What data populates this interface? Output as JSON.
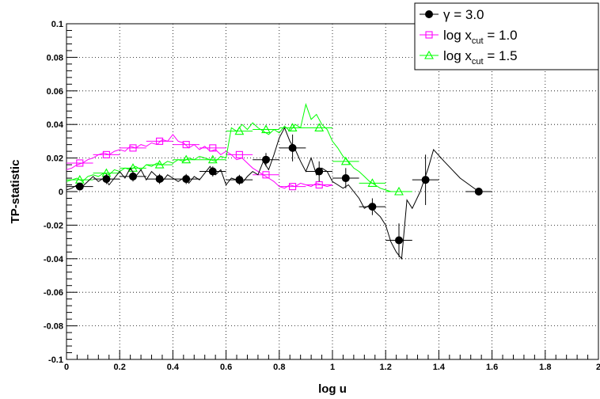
{
  "chart_data": {
    "type": "line",
    "xlabel": "log u",
    "ylabel": "TP-statistic",
    "xlim": [
      0,
      2
    ],
    "ylim": [
      -0.1,
      0.1
    ],
    "x_ticks": [
      {
        "value": 0,
        "label": "0"
      },
      {
        "value": 0.2,
        "label": "0.2"
      },
      {
        "value": 0.4,
        "label": "0.4"
      },
      {
        "value": 0.6,
        "label": "0.6"
      },
      {
        "value": 0.8,
        "label": "0.8"
      },
      {
        "value": 1.0,
        "label": "1"
      },
      {
        "value": 1.2,
        "label": "1.2"
      },
      {
        "value": 1.4,
        "label": "1.4"
      },
      {
        "value": 1.6,
        "label": "1.6"
      },
      {
        "value": 1.8,
        "label": "1.8"
      },
      {
        "value": 2.0,
        "label": "2"
      }
    ],
    "y_ticks": [
      {
        "value": -0.1,
        "label": "-0.1"
      },
      {
        "value": -0.08,
        "label": "-0.08"
      },
      {
        "value": -0.06,
        "label": "-0.06"
      },
      {
        "value": -0.04,
        "label": "-0.04"
      },
      {
        "value": -0.02,
        "label": "-0.02"
      },
      {
        "value": 0,
        "label": "0"
      },
      {
        "value": 0.02,
        "label": "0.02"
      },
      {
        "value": 0.04,
        "label": "0.04"
      },
      {
        "value": 0.06,
        "label": "0.06"
      },
      {
        "value": 0.08,
        "label": "0.08"
      },
      {
        "value": 0.1,
        "label": "0.1"
      }
    ],
    "grid": true,
    "legend_position": "top-right",
    "series": [
      {
        "legend_text": "γ = 3.0",
        "color": "#000000",
        "marker": "filled-circle",
        "curve": [
          [
            0.0,
            0.001
          ],
          [
            0.02,
            0.002
          ],
          [
            0.04,
            0.004
          ],
          [
            0.06,
            0.003
          ],
          [
            0.08,
            0.006
          ],
          [
            0.1,
            0.009
          ],
          [
            0.12,
            0.006
          ],
          [
            0.14,
            0.008
          ],
          [
            0.16,
            0.004
          ],
          [
            0.18,
            0.008
          ],
          [
            0.2,
            0.012
          ],
          [
            0.22,
            0.008
          ],
          [
            0.24,
            0.014
          ],
          [
            0.26,
            0.009
          ],
          [
            0.28,
            0.013
          ],
          [
            0.3,
            0.007
          ],
          [
            0.32,
            0.012
          ],
          [
            0.34,
            0.009
          ],
          [
            0.36,
            0.006
          ],
          [
            0.38,
            0.01
          ],
          [
            0.4,
            0.008
          ],
          [
            0.42,
            0.006
          ],
          [
            0.44,
            0.008
          ],
          [
            0.46,
            0.005
          ],
          [
            0.48,
            0.009
          ],
          [
            0.5,
            0.007
          ],
          [
            0.52,
            0.011
          ],
          [
            0.54,
            0.015
          ],
          [
            0.56,
            0.01
          ],
          [
            0.58,
            0.013
          ],
          [
            0.6,
            0.004
          ],
          [
            0.62,
            0.008
          ],
          [
            0.64,
            0.007
          ],
          [
            0.66,
            0.005
          ],
          [
            0.68,
            0.009
          ],
          [
            0.7,
            0.012
          ],
          [
            0.72,
            0.01
          ],
          [
            0.74,
            0.018
          ],
          [
            0.76,
            0.013
          ],
          [
            0.78,
            0.022
          ],
          [
            0.8,
            0.032
          ],
          [
            0.82,
            0.038
          ],
          [
            0.84,
            0.03
          ],
          [
            0.86,
            0.025
          ],
          [
            0.88,
            0.018
          ],
          [
            0.9,
            0.012
          ],
          [
            0.92,
            0.02
          ],
          [
            0.94,
            0.01
          ],
          [
            0.96,
            0.014
          ],
          [
            0.98,
            0.012
          ],
          [
            1.0,
            0.006
          ],
          [
            1.02,
            0.004
          ],
          [
            1.04,
            0.002
          ],
          [
            1.06,
            0.004
          ],
          [
            1.08,
            0.0
          ],
          [
            1.1,
            -0.004
          ],
          [
            1.12,
            -0.01
          ],
          [
            1.14,
            -0.008
          ],
          [
            1.16,
            -0.012
          ],
          [
            1.18,
            -0.015
          ],
          [
            1.2,
            -0.02
          ],
          [
            1.22,
            -0.03
          ],
          [
            1.24,
            -0.036
          ],
          [
            1.26,
            -0.04
          ],
          [
            1.28,
            -0.005
          ],
          [
            1.3,
            -0.01
          ],
          [
            1.33,
            0.0
          ],
          [
            1.36,
            0.014
          ],
          [
            1.38,
            0.025
          ],
          [
            1.42,
            0.018
          ],
          [
            1.48,
            0.008
          ],
          [
            1.55,
            0.0
          ]
        ],
        "points": [
          {
            "x": 0.05,
            "y": 0.003,
            "xerr": 0.05,
            "yerr": 0.002
          },
          {
            "x": 0.15,
            "y": 0.0075,
            "xerr": 0.05,
            "yerr": 0.003
          },
          {
            "x": 0.25,
            "y": 0.009,
            "xerr": 0.05,
            "yerr": 0.003
          },
          {
            "x": 0.35,
            "y": 0.0075,
            "xerr": 0.05,
            "yerr": 0.003
          },
          {
            "x": 0.45,
            "y": 0.0075,
            "xerr": 0.05,
            "yerr": 0.003
          },
          {
            "x": 0.55,
            "y": 0.012,
            "xerr": 0.05,
            "yerr": 0.003
          },
          {
            "x": 0.65,
            "y": 0.007,
            "xerr": 0.05,
            "yerr": 0.003
          },
          {
            "x": 0.75,
            "y": 0.019,
            "xerr": 0.05,
            "yerr": 0.004
          },
          {
            "x": 0.85,
            "y": 0.026,
            "xerr": 0.05,
            "yerr": 0.008
          },
          {
            "x": 0.95,
            "y": 0.012,
            "xerr": 0.05,
            "yerr": 0.006
          },
          {
            "x": 1.05,
            "y": 0.008,
            "xerr": 0.05,
            "yerr": 0.006
          },
          {
            "x": 1.15,
            "y": -0.009,
            "xerr": 0.05,
            "yerr": 0.005
          },
          {
            "x": 1.25,
            "y": -0.029,
            "xerr": 0.05,
            "yerr": 0.01
          },
          {
            "x": 1.35,
            "y": 0.007,
            "xerr": 0.05,
            "yerr": 0.015
          },
          {
            "x": 1.55,
            "y": 0.0,
            "xerr": 0.05,
            "yerr": 0.0
          }
        ]
      },
      {
        "legend_text": "log x",
        "legend_sub": "cut",
        "legend_suffix": " = 1.0",
        "color": "#ff00ff",
        "marker": "open-square",
        "curve": [
          [
            0.0,
            0.013
          ],
          [
            0.02,
            0.014
          ],
          [
            0.04,
            0.016
          ],
          [
            0.06,
            0.017
          ],
          [
            0.08,
            0.019
          ],
          [
            0.1,
            0.02
          ],
          [
            0.12,
            0.022
          ],
          [
            0.14,
            0.023
          ],
          [
            0.16,
            0.022
          ],
          [
            0.18,
            0.024
          ],
          [
            0.2,
            0.025
          ],
          [
            0.22,
            0.024
          ],
          [
            0.24,
            0.027
          ],
          [
            0.26,
            0.026
          ],
          [
            0.28,
            0.028
          ],
          [
            0.3,
            0.027
          ],
          [
            0.32,
            0.029
          ],
          [
            0.34,
            0.028
          ],
          [
            0.36,
            0.031
          ],
          [
            0.38,
            0.03
          ],
          [
            0.4,
            0.034
          ],
          [
            0.42,
            0.03
          ],
          [
            0.44,
            0.029
          ],
          [
            0.46,
            0.026
          ],
          [
            0.48,
            0.028
          ],
          [
            0.5,
            0.025
          ],
          [
            0.52,
            0.027
          ],
          [
            0.54,
            0.024
          ],
          [
            0.56,
            0.025
          ],
          [
            0.58,
            0.022
          ],
          [
            0.6,
            0.024
          ],
          [
            0.62,
            0.022
          ],
          [
            0.64,
            0.019
          ],
          [
            0.66,
            0.02
          ],
          [
            0.68,
            0.017
          ],
          [
            0.7,
            0.014
          ],
          [
            0.72,
            0.012
          ],
          [
            0.74,
            0.01
          ],
          [
            0.76,
            0.008
          ],
          [
            0.78,
            0.006
          ],
          [
            0.8,
            0.003
          ],
          [
            0.82,
            0.002
          ],
          [
            0.84,
            0.004
          ],
          [
            0.86,
            0.003
          ],
          [
            0.88,
            0.005
          ],
          [
            0.9,
            0.004
          ],
          [
            0.92,
            0.003
          ],
          [
            0.94,
            0.005
          ],
          [
            0.96,
            0.004
          ],
          [
            0.98,
            0.003
          ],
          [
            1.0,
            0.004
          ]
        ],
        "points": [
          {
            "x": 0.05,
            "y": 0.017,
            "xerr": 0.05
          },
          {
            "x": 0.15,
            "y": 0.022,
            "xerr": 0.05
          },
          {
            "x": 0.25,
            "y": 0.026,
            "xerr": 0.05
          },
          {
            "x": 0.35,
            "y": 0.03,
            "xerr": 0.05
          },
          {
            "x": 0.45,
            "y": 0.028,
            "xerr": 0.05
          },
          {
            "x": 0.55,
            "y": 0.026,
            "xerr": 0.05
          },
          {
            "x": 0.65,
            "y": 0.022,
            "xerr": 0.05
          },
          {
            "x": 0.75,
            "y": 0.01,
            "xerr": 0.05
          },
          {
            "x": 0.85,
            "y": 0.003,
            "xerr": 0.05
          },
          {
            "x": 0.95,
            "y": 0.004,
            "xerr": 0.05
          }
        ]
      },
      {
        "legend_text": "log x",
        "legend_sub": "cut",
        "legend_suffix": " = 1.5",
        "color": "#00ff00",
        "marker": "open-triangle",
        "curve": [
          [
            0.0,
            0.006
          ],
          [
            0.02,
            0.007
          ],
          [
            0.04,
            0.008
          ],
          [
            0.06,
            0.006
          ],
          [
            0.08,
            0.009
          ],
          [
            0.1,
            0.01
          ],
          [
            0.12,
            0.009
          ],
          [
            0.14,
            0.011
          ],
          [
            0.16,
            0.01
          ],
          [
            0.18,
            0.013
          ],
          [
            0.2,
            0.012
          ],
          [
            0.22,
            0.014
          ],
          [
            0.24,
            0.013
          ],
          [
            0.26,
            0.015
          ],
          [
            0.28,
            0.013
          ],
          [
            0.3,
            0.016
          ],
          [
            0.32,
            0.015
          ],
          [
            0.34,
            0.017
          ],
          [
            0.36,
            0.016
          ],
          [
            0.38,
            0.018
          ],
          [
            0.4,
            0.017
          ],
          [
            0.42,
            0.019
          ],
          [
            0.44,
            0.018
          ],
          [
            0.46,
            0.02
          ],
          [
            0.48,
            0.019
          ],
          [
            0.5,
            0.021
          ],
          [
            0.52,
            0.02
          ],
          [
            0.54,
            0.019
          ],
          [
            0.56,
            0.018
          ],
          [
            0.58,
            0.021
          ],
          [
            0.6,
            0.02
          ],
          [
            0.62,
            0.038
          ],
          [
            0.64,
            0.036
          ],
          [
            0.66,
            0.04
          ],
          [
            0.68,
            0.037
          ],
          [
            0.7,
            0.041
          ],
          [
            0.72,
            0.038
          ],
          [
            0.74,
            0.036
          ],
          [
            0.76,
            0.034
          ],
          [
            0.78,
            0.037
          ],
          [
            0.8,
            0.035
          ],
          [
            0.82,
            0.039
          ],
          [
            0.84,
            0.036
          ],
          [
            0.86,
            0.04
          ],
          [
            0.88,
            0.038
          ],
          [
            0.9,
            0.052
          ],
          [
            0.92,
            0.043
          ],
          [
            0.94,
            0.046
          ],
          [
            0.96,
            0.04
          ],
          [
            0.98,
            0.037
          ],
          [
            1.0,
            0.03
          ],
          [
            1.02,
            0.026
          ],
          [
            1.04,
            0.021
          ],
          [
            1.06,
            0.018
          ],
          [
            1.08,
            0.014
          ],
          [
            1.1,
            0.012
          ],
          [
            1.12,
            0.009
          ],
          [
            1.14,
            0.006
          ],
          [
            1.16,
            0.004
          ],
          [
            1.18,
            0.002
          ],
          [
            1.2,
            0.001
          ],
          [
            1.22,
            0.0
          ],
          [
            1.24,
            0.0
          ]
        ],
        "points": [
          {
            "x": 0.05,
            "y": 0.007,
            "xerr": 0.05
          },
          {
            "x": 0.15,
            "y": 0.011,
            "xerr": 0.05
          },
          {
            "x": 0.25,
            "y": 0.014,
            "xerr": 0.05
          },
          {
            "x": 0.35,
            "y": 0.016,
            "xerr": 0.05
          },
          {
            "x": 0.45,
            "y": 0.019,
            "xerr": 0.05
          },
          {
            "x": 0.55,
            "y": 0.019,
            "xerr": 0.05
          },
          {
            "x": 0.65,
            "y": 0.036,
            "xerr": 0.05
          },
          {
            "x": 0.75,
            "y": 0.037,
            "xerr": 0.05
          },
          {
            "x": 0.85,
            "y": 0.038,
            "xerr": 0.05
          },
          {
            "x": 0.95,
            "y": 0.038,
            "xerr": 0.05
          },
          {
            "x": 1.05,
            "y": 0.018,
            "xerr": 0.05
          },
          {
            "x": 1.15,
            "y": 0.005,
            "xerr": 0.05
          },
          {
            "x": 1.25,
            "y": 0.0,
            "xerr": 0.05
          }
        ]
      }
    ]
  }
}
